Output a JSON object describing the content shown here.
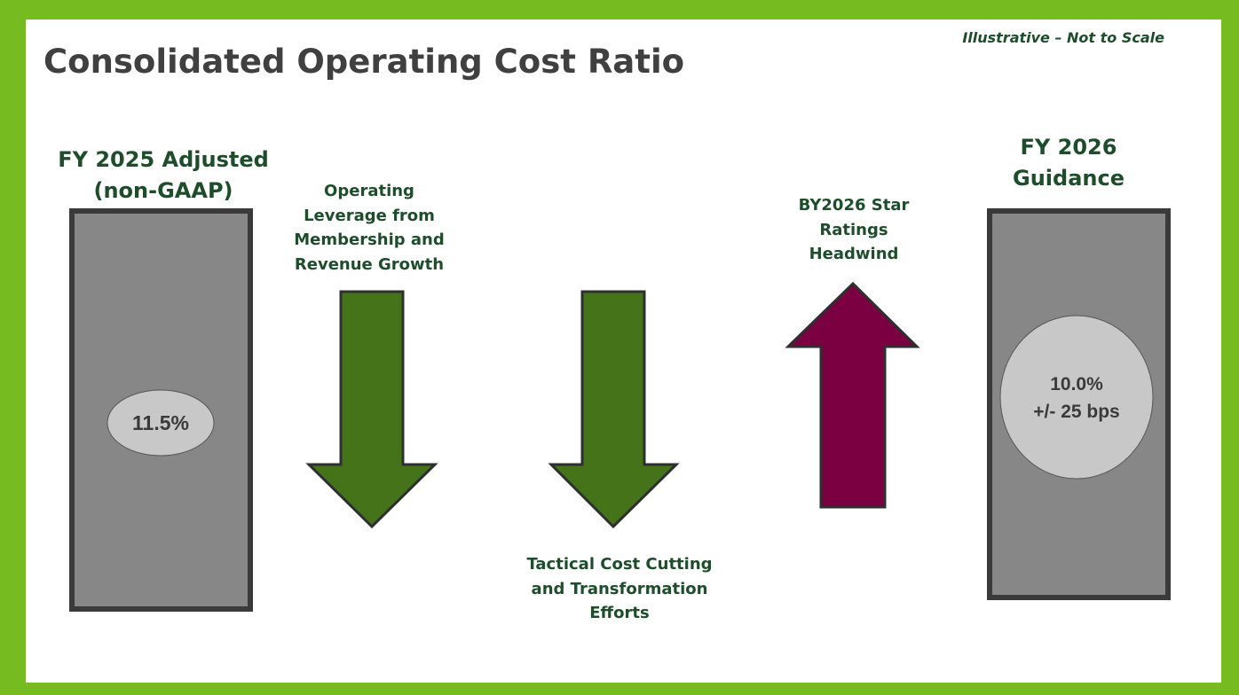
{
  "title": "Consolidated Operating Cost Ratio",
  "note": "Illustrative – Not to Scale",
  "start_bar": {
    "label_lines": [
      "FY 2025 Adjusted",
      "(non-GAAP)"
    ],
    "value_lines": [
      "11.5%"
    ]
  },
  "drivers": [
    {
      "label_lines": [
        "Operating",
        "Leverage from",
        "Membership and",
        "Revenue Growth"
      ]
    },
    {
      "label_lines": [
        "Tactical Cost Cutting",
        "and Transformation",
        "Efforts"
      ]
    },
    {
      "label_lines": [
        "BY2026 Star",
        "Ratings",
        "Headwind"
      ]
    }
  ],
  "end_bar": {
    "label_lines": [
      "FY 2026",
      "Guidance"
    ],
    "value_lines": [
      "10.0%",
      "+/- 25 bps"
    ]
  }
}
